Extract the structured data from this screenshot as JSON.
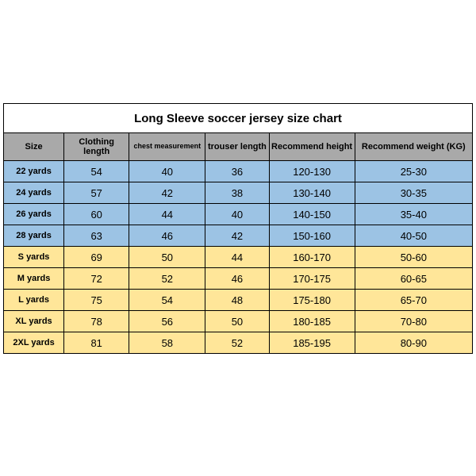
{
  "title": "Long Sleeve soccer jersey size chart",
  "columns": [
    "Size",
    "Clothing length",
    "chest measurement",
    "trouser length",
    "Recommend height",
    "Recommend weight (KG)"
  ],
  "row_group_colors": {
    "kids": "#9cc3e4",
    "adult": "#ffe699"
  },
  "header_bg": "#a9a9a9",
  "border_color": "#000000",
  "rows": [
    {
      "group": "kids",
      "cells": [
        "22 yards",
        "54",
        "40",
        "36",
        "120-130",
        "25-30"
      ]
    },
    {
      "group": "kids",
      "cells": [
        "24 yards",
        "57",
        "42",
        "38",
        "130-140",
        "30-35"
      ]
    },
    {
      "group": "kids",
      "cells": [
        "26 yards",
        "60",
        "44",
        "40",
        "140-150",
        "35-40"
      ]
    },
    {
      "group": "kids",
      "cells": [
        "28 yards",
        "63",
        "46",
        "42",
        "150-160",
        "40-50"
      ]
    },
    {
      "group": "adult",
      "cells": [
        "S yards",
        "69",
        "50",
        "44",
        "160-170",
        "50-60"
      ]
    },
    {
      "group": "adult",
      "cells": [
        "M yards",
        "72",
        "52",
        "46",
        "170-175",
        "60-65"
      ]
    },
    {
      "group": "adult",
      "cells": [
        "L yards",
        "75",
        "54",
        "48",
        "175-180",
        "65-70"
      ]
    },
    {
      "group": "adult",
      "cells": [
        "XL yards",
        "78",
        "56",
        "50",
        "180-185",
        "70-80"
      ]
    },
    {
      "group": "adult",
      "cells": [
        "2XL yards",
        "81",
        "58",
        "52",
        "185-195",
        "80-90"
      ]
    }
  ],
  "fontsizes": {
    "title": 15,
    "header": 11,
    "header_small": 9,
    "cell": 13,
    "size_cell": 11
  }
}
